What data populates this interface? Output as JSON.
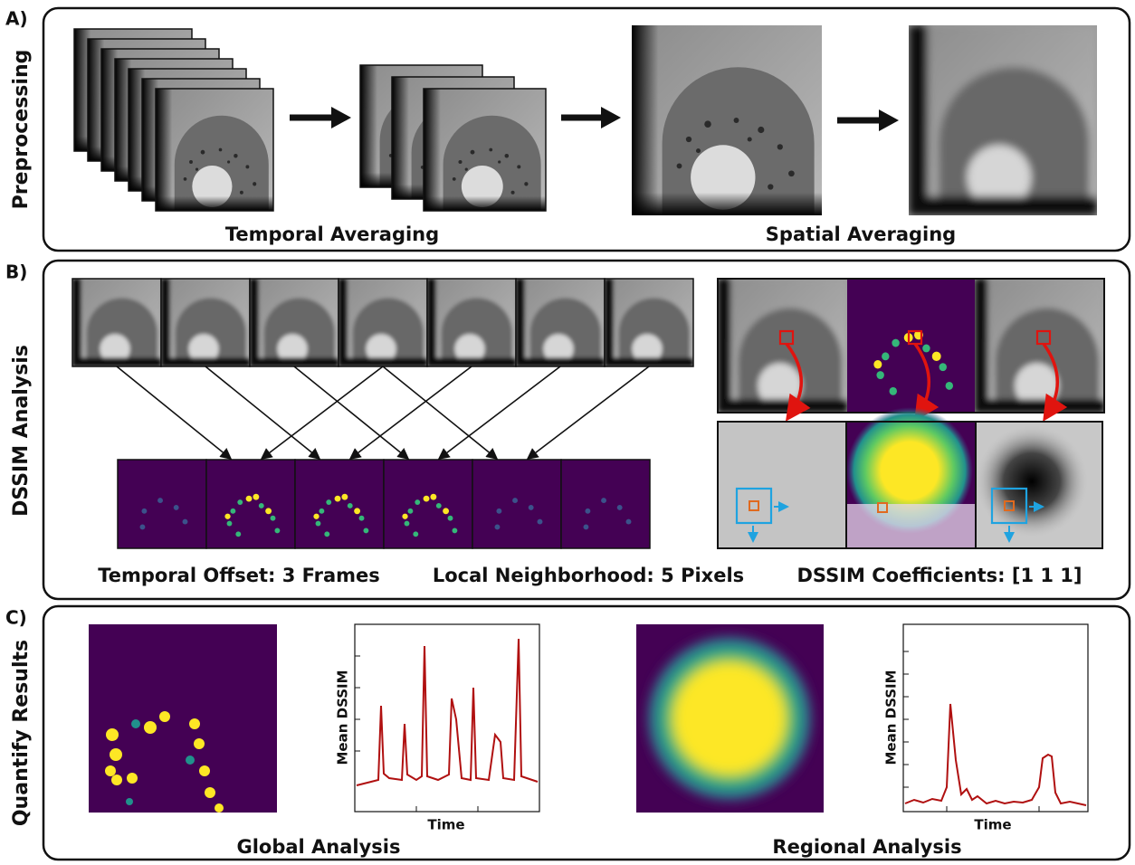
{
  "panels": [
    {
      "label": "A)",
      "title": "Preprocessing",
      "captions": [
        "Temporal Averaging",
        "Spatial Averaging"
      ]
    },
    {
      "label": "B)",
      "title": "DSSIM Analysis",
      "captions": [
        "Temporal Offset: 3 Frames",
        "Local Neighborhood: 5 Pixels",
        "DSSIM Coefficients: [1 1 1]"
      ]
    },
    {
      "label": "C)",
      "title": "Quantify Results",
      "captions": [
        "Global Analysis",
        "Regional Analysis"
      ],
      "plots": [
        {
          "y_label": "Mean DSSIM",
          "x_label": "Time"
        },
        {
          "y_label": "Mean DSSIM",
          "x_label": "Time"
        }
      ]
    }
  ]
}
